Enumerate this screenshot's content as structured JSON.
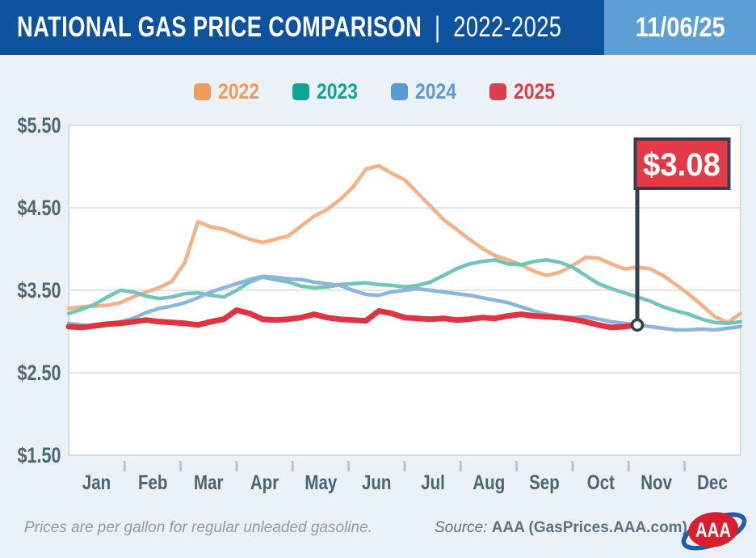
{
  "header": {
    "title_main": "NATIONAL GAS PRICE COMPARISON",
    "title_separator": "|",
    "title_period": "2022-2025",
    "date": "11/06/25",
    "bar_color": "#0D529C",
    "date_box_color": "#5C9FD6"
  },
  "legend": {
    "items": [
      {
        "label": "2022",
        "color": "#F09A5D"
      },
      {
        "label": "2023",
        "color": "#10A496"
      },
      {
        "label": "2024",
        "color": "#5B9BD5"
      },
      {
        "label": "2025",
        "color": "#D93E4B"
      }
    ]
  },
  "annotation": {
    "flag_label": "$3.08",
    "flag_fill": "#E23B47",
    "flag_border": "#32404E",
    "pole_color": "#32404E",
    "marker_fill": "#FFFFFF"
  },
  "footer": {
    "note": "Prices are per gallon for regular unleaded gasoline.",
    "source_prefix": "Source:",
    "source_text": "AAA (GasPrices.AAA.com)",
    "logo_text": "AAA",
    "logo_red": "#D81F30",
    "logo_blue": "#1F5FA8"
  },
  "chart_data": {
    "type": "line",
    "title": "National Gas Price Comparison 2022-2025",
    "units": "USD per gallon",
    "x_categories": [
      "Jan",
      "Feb",
      "Mar",
      "Apr",
      "May",
      "Jun",
      "Jul",
      "Aug",
      "Sep",
      "Oct",
      "Nov",
      "Dec"
    ],
    "y_ticks": [
      "$5.50",
      "$4.50",
      "$3.50",
      "$2.50",
      "$1.50"
    ],
    "ylim": [
      1.5,
      5.5
    ],
    "grid": "horizontal",
    "legend_position": "top-center",
    "sample_interval_days": 7,
    "plot_bg": "#FFFFFF",
    "grid_color": "#E1E5EA",
    "border_color": "#D8DDE3",
    "tick_color": "#B9C2CB",
    "series": [
      {
        "name": "2022",
        "color": "#F5B083",
        "width": 4.5,
        "values": [
          3.28,
          3.3,
          3.31,
          3.32,
          3.35,
          3.42,
          3.48,
          3.53,
          3.61,
          3.84,
          4.33,
          4.27,
          4.24,
          4.18,
          4.12,
          4.08,
          4.12,
          4.16,
          4.28,
          4.4,
          4.48,
          4.6,
          4.75,
          4.97,
          5.01,
          4.92,
          4.84,
          4.68,
          4.52,
          4.36,
          4.24,
          4.12,
          4.01,
          3.92,
          3.87,
          3.81,
          3.73,
          3.68,
          3.72,
          3.8,
          3.9,
          3.89,
          3.82,
          3.76,
          3.78,
          3.76,
          3.68,
          3.57,
          3.45,
          3.32,
          3.18,
          3.11,
          3.22
        ]
      },
      {
        "name": "2023",
        "color": "#6FC5BA",
        "width": 4.5,
        "values": [
          3.22,
          3.27,
          3.33,
          3.42,
          3.5,
          3.48,
          3.43,
          3.4,
          3.42,
          3.46,
          3.47,
          3.44,
          3.42,
          3.5,
          3.6,
          3.66,
          3.63,
          3.6,
          3.55,
          3.53,
          3.54,
          3.57,
          3.58,
          3.59,
          3.57,
          3.56,
          3.54,
          3.56,
          3.6,
          3.68,
          3.76,
          3.82,
          3.85,
          3.87,
          3.82,
          3.81,
          3.85,
          3.87,
          3.84,
          3.78,
          3.68,
          3.58,
          3.52,
          3.47,
          3.42,
          3.37,
          3.3,
          3.25,
          3.21,
          3.15,
          3.11,
          3.1,
          3.12
        ]
      },
      {
        "name": "2024",
        "color": "#8BB4E0",
        "width": 4.5,
        "values": [
          3.1,
          3.08,
          3.06,
          3.09,
          3.12,
          3.16,
          3.23,
          3.28,
          3.31,
          3.35,
          3.41,
          3.48,
          3.53,
          3.58,
          3.63,
          3.67,
          3.66,
          3.64,
          3.63,
          3.6,
          3.58,
          3.56,
          3.5,
          3.45,
          3.44,
          3.48,
          3.5,
          3.52,
          3.5,
          3.48,
          3.46,
          3.44,
          3.41,
          3.38,
          3.35,
          3.3,
          3.25,
          3.21,
          3.18,
          3.17,
          3.18,
          3.15,
          3.12,
          3.1,
          3.08,
          3.06,
          3.04,
          3.02,
          3.02,
          3.03,
          3.02,
          3.04,
          3.06
        ]
      },
      {
        "name": "2025",
        "color": "#E1333F",
        "width": 7,
        "end_marker": true,
        "end_label": "$3.08",
        "values": [
          3.06,
          3.05,
          3.07,
          3.09,
          3.1,
          3.12,
          3.14,
          3.12,
          3.11,
          3.1,
          3.08,
          3.12,
          3.15,
          3.26,
          3.22,
          3.15,
          3.14,
          3.15,
          3.17,
          3.21,
          3.17,
          3.15,
          3.14,
          3.13,
          3.25,
          3.22,
          3.17,
          3.16,
          3.15,
          3.16,
          3.14,
          3.15,
          3.17,
          3.16,
          3.19,
          3.21,
          3.19,
          3.18,
          3.17,
          3.15,
          3.12,
          3.08,
          3.05,
          3.06,
          3.08
        ]
      }
    ]
  }
}
